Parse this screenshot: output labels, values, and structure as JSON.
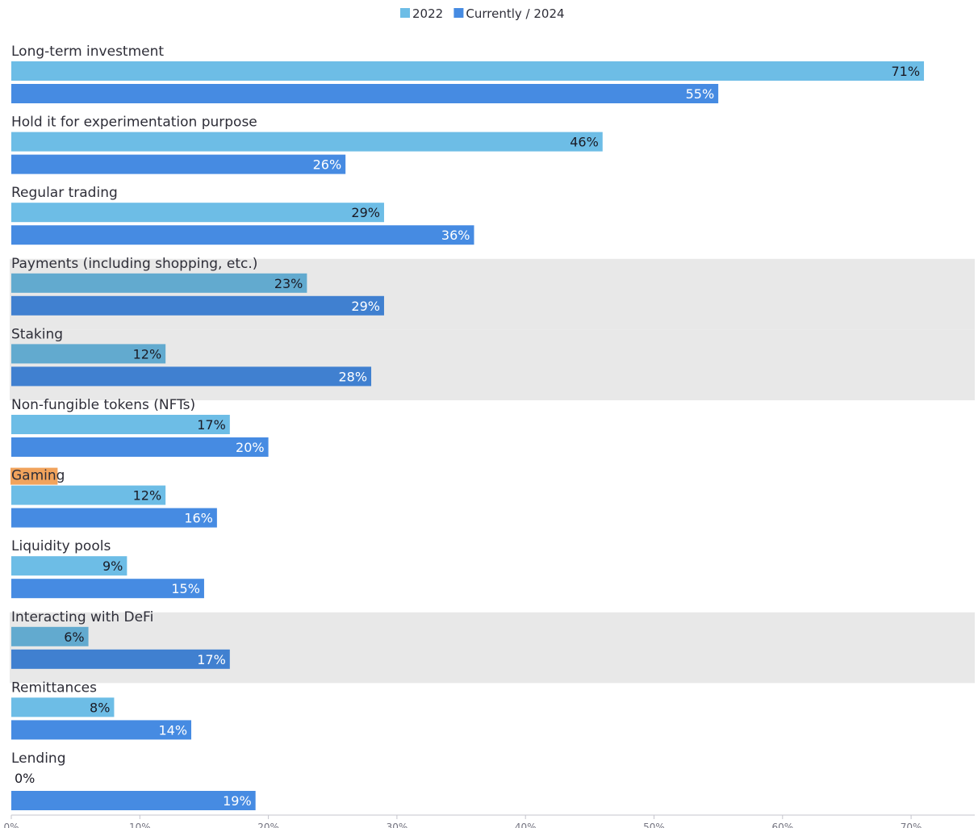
{
  "chart_data": {
    "type": "bar",
    "orientation": "horizontal",
    "legend_position": "top-center",
    "grid": false,
    "xlim": [
      0,
      75
    ],
    "x_ticks": [
      "0%",
      "10%",
      "20%",
      "30%",
      "40%",
      "50%",
      "60%",
      "70%"
    ],
    "categories": [
      "Long-term investment",
      "Hold it for experimentation purpose",
      "Regular trading",
      "Payments (including shopping, etc.)",
      "Staking",
      "Non-fungible tokens (NFTs)",
      "Gaming",
      "Liquidity pools",
      "Interacting with DeFi",
      "Remittances",
      "Lending"
    ],
    "series": [
      {
        "name": "2022",
        "color": "#6dbde6",
        "values": [
          71,
          46,
          29,
          23,
          12,
          17,
          12,
          9,
          6,
          8,
          0
        ]
      },
      {
        "name": "Currently / 2024",
        "color": "#468be2",
        "values": [
          55,
          26,
          36,
          29,
          28,
          20,
          16,
          15,
          17,
          14,
          19
        ]
      }
    ],
    "value_suffix": "%",
    "highlighted_rows": [
      3,
      4,
      8
    ],
    "highlight_color": "#e8e8e8",
    "highlighted_label_index": 6,
    "highlighted_label_color": "#f1a35c"
  }
}
